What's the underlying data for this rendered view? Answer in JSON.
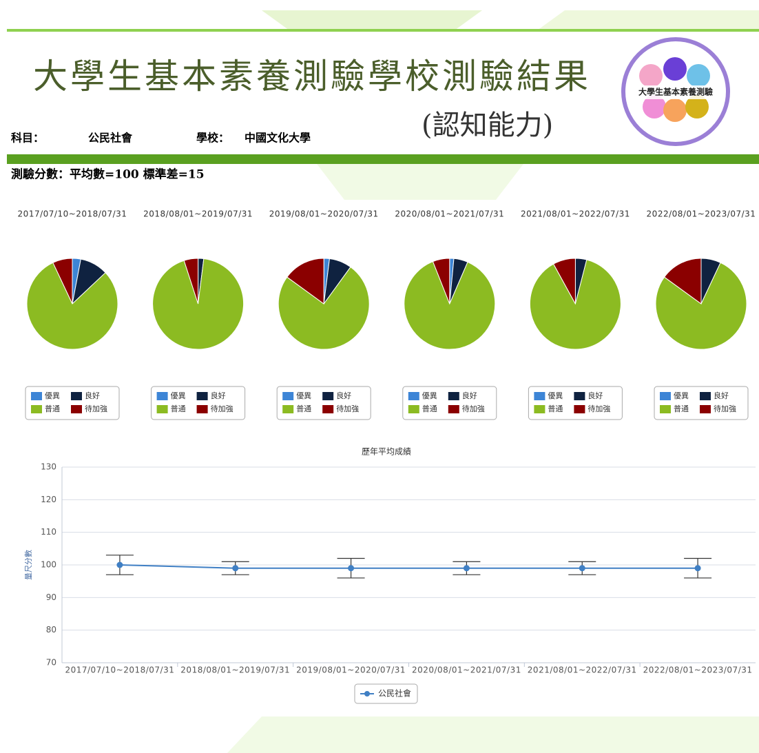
{
  "header": {
    "title": "大學生基本素養測驗學校測驗結果",
    "subtitle": "(認知能力)",
    "logo_text": "大學生基本素養測驗",
    "subject_label": "科目：",
    "subject": "公民社會",
    "school_label": "學校：",
    "school": "中國文化大學",
    "score_note": "測驗分數：平均數=100 標準差=15"
  },
  "chart_data": [
    {
      "type": "pie",
      "title": "2017/07/10~2018/07/31",
      "categories": [
        "優異",
        "良好",
        "普通",
        "待加強"
      ],
      "colors": [
        "#3d85d6",
        "#0f2240",
        "#8cbb22",
        "#8b0000"
      ],
      "values": [
        3,
        10,
        80,
        7
      ]
    },
    {
      "type": "pie",
      "title": "2018/08/01~2019/07/31",
      "categories": [
        "優異",
        "良好",
        "普通",
        "待加強"
      ],
      "colors": [
        "#3d85d6",
        "#0f2240",
        "#8cbb22",
        "#8b0000"
      ],
      "values": [
        0,
        2,
        93,
        5
      ]
    },
    {
      "type": "pie",
      "title": "2019/08/01~2020/07/31",
      "categories": [
        "優異",
        "良好",
        "普通",
        "待加強"
      ],
      "colors": [
        "#3d85d6",
        "#0f2240",
        "#8cbb22",
        "#8b0000"
      ],
      "values": [
        2,
        8,
        75,
        15
      ]
    },
    {
      "type": "pie",
      "title": "2020/08/01~2021/07/31",
      "categories": [
        "優異",
        "良好",
        "普通",
        "待加強"
      ],
      "colors": [
        "#3d85d6",
        "#0f2240",
        "#8cbb22",
        "#8b0000"
      ],
      "values": [
        1.5,
        5,
        87.5,
        6
      ]
    },
    {
      "type": "pie",
      "title": "2021/08/01~2022/07/31",
      "categories": [
        "優異",
        "良好",
        "普通",
        "待加強"
      ],
      "colors": [
        "#3d85d6",
        "#0f2240",
        "#8cbb22",
        "#8b0000"
      ],
      "values": [
        0,
        4,
        88,
        8
      ]
    },
    {
      "type": "pie",
      "title": "2022/08/01~2023/07/31",
      "categories": [
        "優異",
        "良好",
        "普通",
        "待加強"
      ],
      "colors": [
        "#3d85d6",
        "#0f2240",
        "#8cbb22",
        "#8b0000"
      ],
      "values": [
        0,
        7,
        78,
        15
      ]
    },
    {
      "type": "line",
      "title": "歷年平均成績",
      "ylabel": "量尺分數",
      "categories": [
        "2017/07/10~2018/07/31",
        "2018/08/01~2019/07/31",
        "2019/08/01~2020/07/31",
        "2020/08/01~2021/07/31",
        "2021/08/01~2022/07/31",
        "2022/08/01~2023/07/31"
      ],
      "series": [
        {
          "name": "公民社會",
          "color": "#3f7fc4",
          "values": [
            100,
            99,
            99,
            99,
            99,
            99
          ],
          "low": [
            97,
            97,
            96,
            97,
            97,
            96
          ],
          "high": [
            103,
            101,
            102,
            101,
            101,
            102
          ]
        }
      ],
      "ylim": [
        70,
        130
      ],
      "yticks": [
        70,
        80,
        90,
        100,
        110,
        120,
        130
      ],
      "grid": true
    }
  ]
}
